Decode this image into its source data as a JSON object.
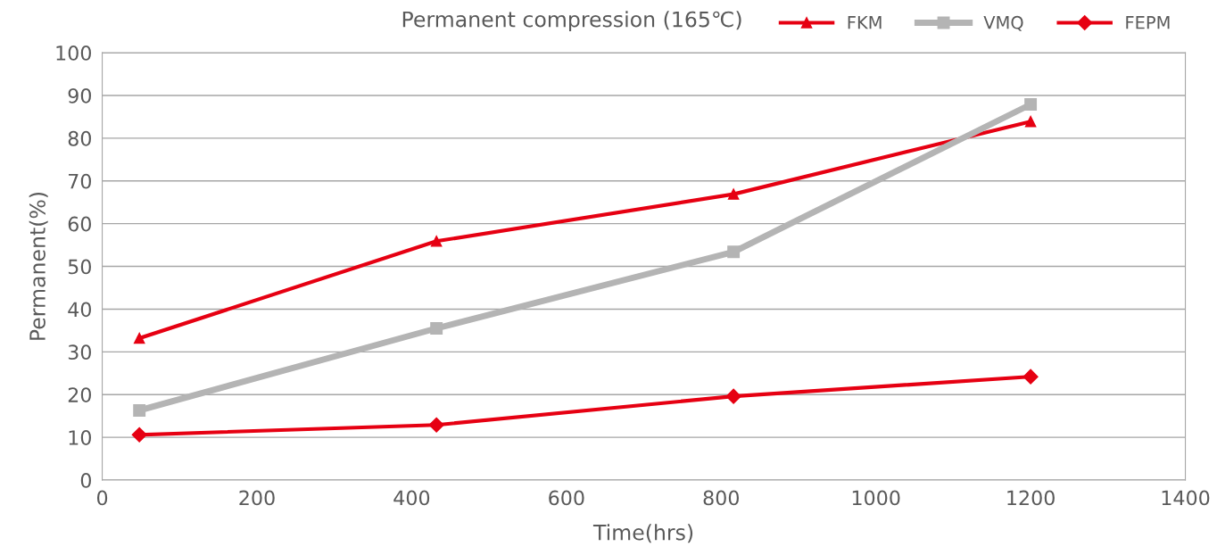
{
  "chart_data": {
    "type": "line",
    "title": "Permanent compression (165℃)",
    "xlabel": "Time(hrs)",
    "ylabel": "Permanent(%)",
    "x": [
      48,
      432,
      816,
      1200
    ],
    "series": [
      {
        "name": "FKM",
        "color": "#e60012",
        "marker": "triangle",
        "values": [
          33.2,
          55.9,
          66.9,
          83.9
        ]
      },
      {
        "name": "VMQ",
        "color": "#b4b4b4",
        "marker": "square",
        "values": [
          16.3,
          35.5,
          53.4,
          87.9
        ]
      },
      {
        "name": "FEPM",
        "color": "#e60012",
        "marker": "diamond",
        "values": [
          10.6,
          12.9,
          19.6,
          24.2
        ]
      }
    ],
    "xlim": [
      0,
      1400
    ],
    "xticks": [
      0,
      200,
      400,
      600,
      800,
      1000,
      1200,
      1400
    ],
    "ylim": [
      0,
      100
    ],
    "yticks": [
      0,
      10,
      20,
      30,
      40,
      50,
      60,
      70,
      80,
      90,
      100
    ],
    "grid": "y",
    "legend": "top right",
    "line_style": "solid"
  }
}
